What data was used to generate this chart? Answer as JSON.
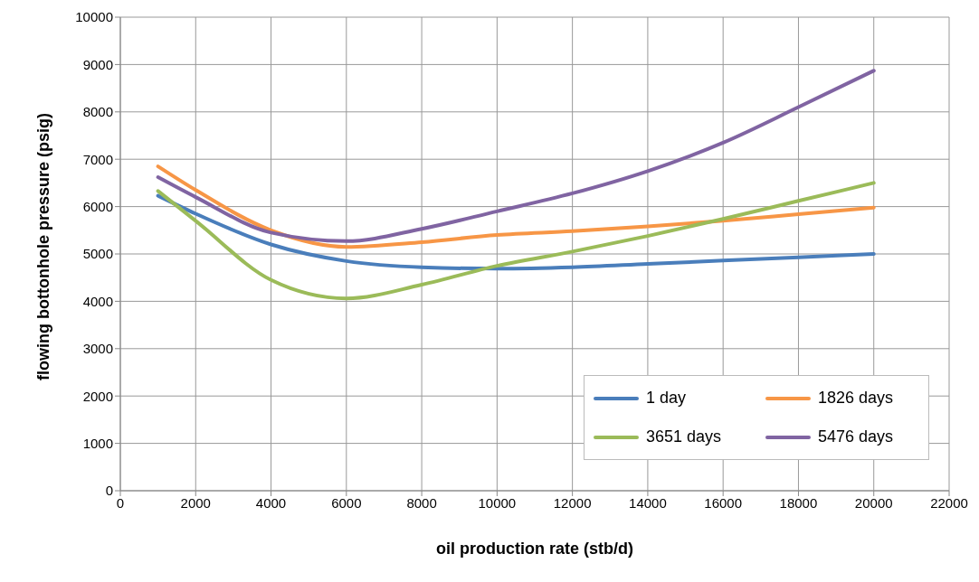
{
  "chart_data": {
    "type": "line",
    "xlabel": "oil production rate (stb/d)",
    "ylabel": "flowing bottonhole  pressure (psig)",
    "x": [
      1000,
      2000,
      4000,
      6000,
      8000,
      10000,
      12000,
      14000,
      16000,
      18000,
      20000
    ],
    "series": [
      {
        "name": "1 day",
        "color": "#4a7ebb",
        "values": [
          6230,
          5850,
          5200,
          4850,
          4720,
          4690,
          4720,
          4790,
          4860,
          4930,
          5000
        ]
      },
      {
        "name": "1826 days",
        "color": "#f79646",
        "values": [
          6850,
          6350,
          5500,
          5150,
          5250,
          5400,
          5480,
          5580,
          5700,
          5840,
          5980
        ]
      },
      {
        "name": "3651 days",
        "color": "#9bbb59",
        "values": [
          6330,
          5700,
          4450,
          4060,
          4350,
          4750,
          5050,
          5380,
          5740,
          6120,
          6500
        ]
      },
      {
        "name": "5476 days",
        "color": "#8064a2",
        "values": [
          6620,
          6200,
          5450,
          5270,
          5530,
          5900,
          6280,
          6750,
          7350,
          8100,
          8870
        ]
      }
    ],
    "xlim": [
      0,
      22000
    ],
    "xticks": [
      0,
      2000,
      4000,
      6000,
      8000,
      10000,
      12000,
      14000,
      16000,
      18000,
      20000,
      22000
    ],
    "ylim": [
      0,
      10000
    ],
    "yticks": [
      0,
      1000,
      2000,
      3000,
      4000,
      5000,
      6000,
      7000,
      8000,
      9000,
      10000
    ],
    "grid": true,
    "legend": "bottom right",
    "marker": "none",
    "line_style": "solid"
  }
}
